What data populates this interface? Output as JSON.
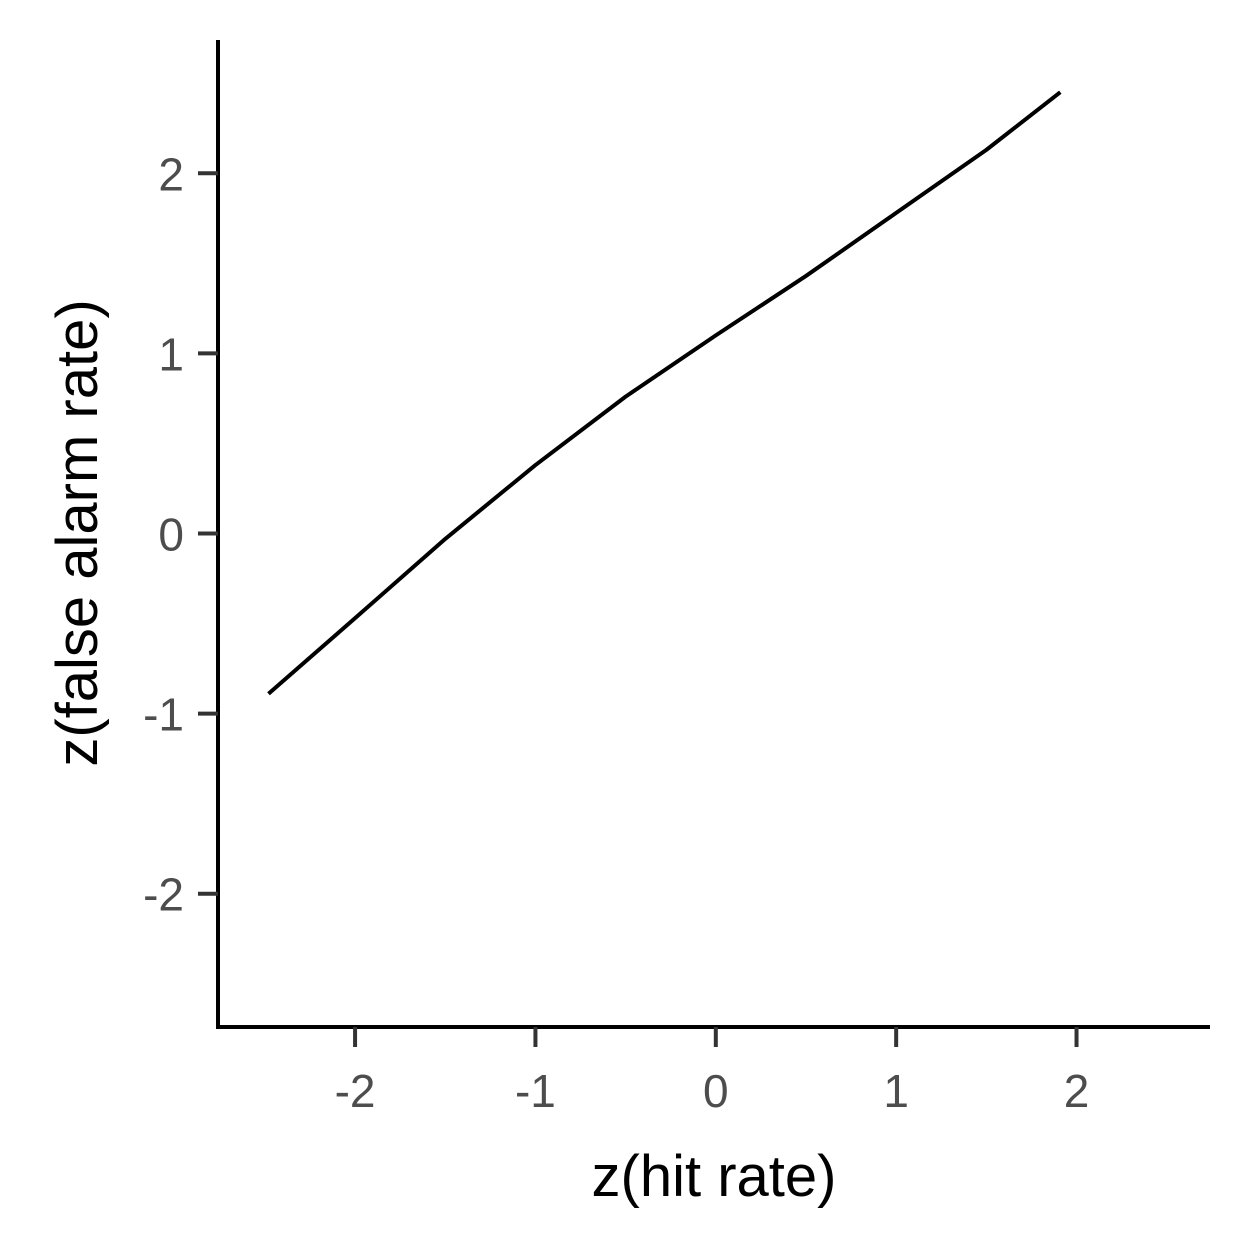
{
  "chart_data": {
    "type": "line",
    "title": "",
    "xlabel": "z(hit rate)",
    "ylabel": "z(false alarm rate)",
    "xlim": [
      -2.76,
      2.74
    ],
    "ylim": [
      -2.74,
      2.74
    ],
    "xticks": [
      -2,
      -1,
      0,
      1,
      2
    ],
    "yticks": [
      -2,
      -1,
      0,
      1,
      2
    ],
    "grid": false,
    "line_color": "#000000",
    "axis_color": "#000000",
    "tick_label_color": "#4d4d4d",
    "series": [
      {
        "x": [
          -2.48,
          -2.0,
          -1.5,
          -1.0,
          -0.5,
          0.0,
          0.5,
          1.0,
          1.5,
          1.91
        ],
        "y": [
          -0.89,
          -0.47,
          -0.03,
          0.38,
          0.76,
          1.1,
          1.43,
          1.78,
          2.13,
          2.45
        ]
      }
    ]
  }
}
